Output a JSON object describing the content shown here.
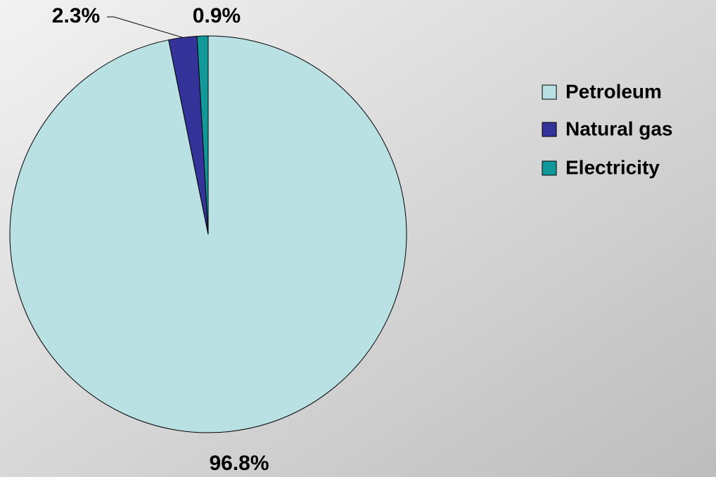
{
  "chart_data": {
    "type": "pie",
    "categories": [
      "Petroleum",
      "Natural gas",
      "Electricity"
    ],
    "values": [
      96.8,
      2.3,
      0.9
    ],
    "value_labels": [
      "96.8%",
      "2.3%",
      "0.9%"
    ],
    "colors": [
      "#b9e0e3",
      "#333399",
      "#119999"
    ],
    "legend": "right"
  }
}
